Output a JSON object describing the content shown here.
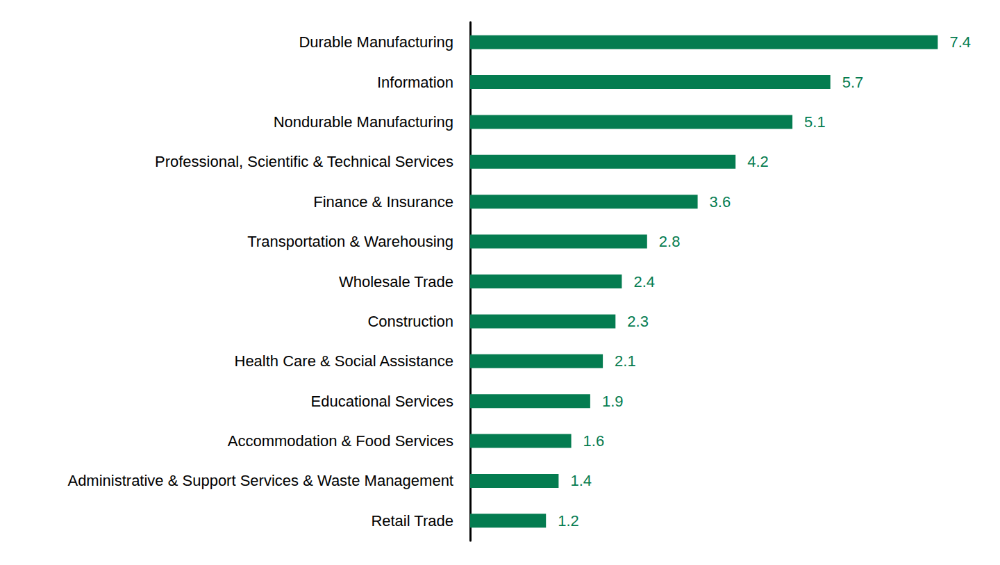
{
  "chart_data": {
    "type": "bar",
    "orientation": "horizontal",
    "categories": [
      "Durable Manufacturing",
      "Information",
      "Nondurable Manufacturing",
      "Professional, Scientific & Technical Services",
      "Finance & Insurance",
      "Transportation & Warehousing",
      "Wholesale Trade",
      "Construction",
      "Health Care & Social Assistance",
      "Educational Services",
      "Accommodation & Food Services",
      "Administrative & Support Services & Waste Management",
      "Retail Trade"
    ],
    "values": [
      7.4,
      5.7,
      5.1,
      4.2,
      3.6,
      2.8,
      2.4,
      2.3,
      2.1,
      1.9,
      1.6,
      1.4,
      1.2
    ],
    "color": "#047c50",
    "xlim": [
      0,
      8
    ],
    "data_labels": true,
    "tick_labels": "y",
    "grid": false
  }
}
